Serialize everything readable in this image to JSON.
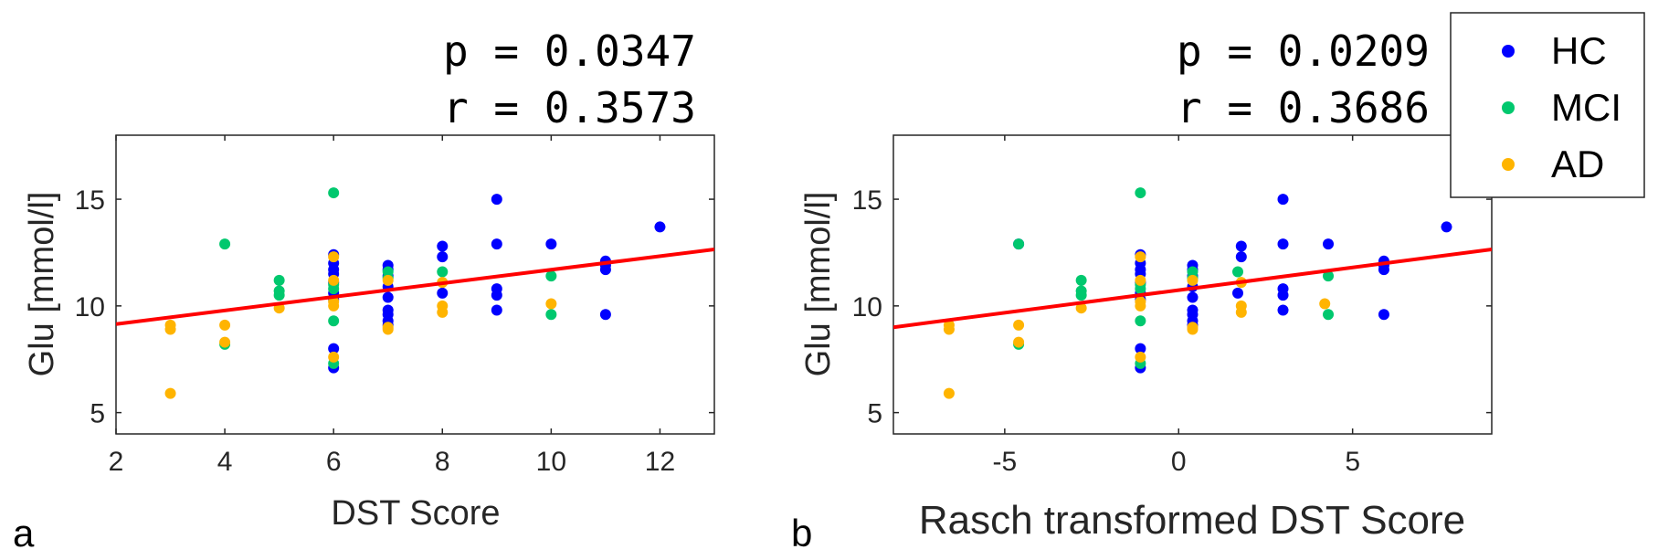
{
  "colors": {
    "HC": "#0000ff",
    "MCI": "#00c86e",
    "AD": "#ffb400",
    "fit": "#ff0000"
  },
  "legend": {
    "position": "top-right",
    "entries": [
      {
        "key": "HC",
        "label": "HC"
      },
      {
        "key": "MCI",
        "label": "MCI"
      },
      {
        "key": "AD",
        "label": "AD"
      }
    ]
  },
  "chart_data": [
    {
      "type": "scatter",
      "panel_label": "a",
      "stats": {
        "p": "p = 0.0347",
        "r": "r = 0.3573"
      },
      "xlabel": "DST Score",
      "ylabel": "Glu [mmol/l]",
      "xlim": [
        2,
        13
      ],
      "ylim": [
        4,
        18
      ],
      "xticks": [
        2,
        4,
        6,
        8,
        10,
        12
      ],
      "yticks": [
        5,
        10,
        15
      ],
      "fit": {
        "x": [
          2,
          13
        ],
        "y": [
          9.15,
          12.65
        ]
      },
      "series": [
        {
          "name": "HC",
          "points": [
            [
              6,
              12.4
            ],
            [
              6,
              12.0
            ],
            [
              6,
              11.7
            ],
            [
              6,
              11.5
            ],
            [
              6,
              11.1
            ],
            [
              6,
              10.6
            ],
            [
              6,
              10.3
            ],
            [
              6,
              8.0
            ],
            [
              6,
              7.1
            ],
            [
              7,
              11.9
            ],
            [
              7,
              11.7
            ],
            [
              7,
              11.4
            ],
            [
              7,
              10.9
            ],
            [
              7,
              10.4
            ],
            [
              7,
              9.8
            ],
            [
              7,
              9.6
            ],
            [
              7,
              9.3
            ],
            [
              7,
              9.1
            ],
            [
              8,
              12.8
            ],
            [
              8,
              12.3
            ],
            [
              8,
              10.6
            ],
            [
              9,
              15.0
            ],
            [
              9,
              12.9
            ],
            [
              9,
              10.8
            ],
            [
              9,
              10.5
            ],
            [
              9,
              9.8
            ],
            [
              10,
              12.9
            ],
            [
              11,
              12.1
            ],
            [
              11,
              11.9
            ],
            [
              11,
              11.7
            ],
            [
              11,
              9.6
            ],
            [
              12,
              13.7
            ]
          ]
        },
        {
          "name": "MCI",
          "points": [
            [
              4,
              12.9
            ],
            [
              4,
              8.2
            ],
            [
              5,
              11.2
            ],
            [
              5,
              10.7
            ],
            [
              5,
              10.5
            ],
            [
              6,
              15.3
            ],
            [
              6,
              11.0
            ],
            [
              6,
              10.8
            ],
            [
              6,
              9.3
            ],
            [
              6,
              7.3
            ],
            [
              7,
              11.6
            ],
            [
              7,
              11.3
            ],
            [
              8,
              11.6
            ],
            [
              10,
              11.4
            ],
            [
              10,
              9.6
            ]
          ]
        },
        {
          "name": "AD",
          "points": [
            [
              3,
              9.1
            ],
            [
              3,
              8.9
            ],
            [
              3,
              5.9
            ],
            [
              4,
              9.1
            ],
            [
              4,
              8.3
            ],
            [
              5,
              9.9
            ],
            [
              6,
              12.3
            ],
            [
              6,
              11.2
            ],
            [
              6,
              10.2
            ],
            [
              6,
              10.0
            ],
            [
              6,
              7.6
            ],
            [
              7,
              11.2
            ],
            [
              7,
              9.0
            ],
            [
              7,
              8.9
            ],
            [
              8,
              11.1
            ],
            [
              8,
              10.0
            ],
            [
              8,
              9.7
            ],
            [
              10,
              10.1
            ]
          ]
        }
      ]
    },
    {
      "type": "scatter",
      "panel_label": "b",
      "stats": {
        "p": "p = 0.0209",
        "r": "r = 0.3686"
      },
      "xlabel": "Rasch transformed DST Score",
      "ylabel": "Glu [mmol/l]",
      "xlim": [
        -8.2,
        9
      ],
      "ylim": [
        4,
        18
      ],
      "xticks": [
        -5,
        0,
        5
      ],
      "yticks": [
        5,
        10,
        15
      ],
      "fit": {
        "x": [
          -8.2,
          9
        ],
        "y": [
          9.0,
          12.65
        ]
      },
      "series": [
        {
          "name": "HC",
          "points": [
            [
              -4.6,
              12.9
            ],
            [
              -1.1,
              12.4
            ],
            [
              -1.1,
              12.0
            ],
            [
              -1.1,
              11.7
            ],
            [
              -1.1,
              11.5
            ],
            [
              -1.1,
              11.1
            ],
            [
              -1.1,
              10.6
            ],
            [
              -1.1,
              10.3
            ],
            [
              -1.1,
              8.0
            ],
            [
              -1.1,
              7.1
            ],
            [
              0.4,
              11.9
            ],
            [
              0.4,
              11.7
            ],
            [
              0.4,
              11.4
            ],
            [
              0.4,
              10.9
            ],
            [
              0.4,
              10.4
            ],
            [
              0.4,
              9.8
            ],
            [
              0.4,
              9.6
            ],
            [
              0.4,
              9.3
            ],
            [
              0.4,
              9.1
            ],
            [
              1.8,
              12.8
            ],
            [
              1.8,
              12.3
            ],
            [
              1.7,
              10.6
            ],
            [
              3.0,
              15.0
            ],
            [
              3.0,
              12.9
            ],
            [
              3.0,
              10.8
            ],
            [
              3.0,
              10.5
            ],
            [
              3.0,
              9.8
            ],
            [
              4.3,
              12.9
            ],
            [
              5.9,
              12.1
            ],
            [
              5.9,
              11.9
            ],
            [
              5.9,
              11.7
            ],
            [
              5.9,
              9.6
            ],
            [
              7.7,
              13.7
            ]
          ]
        },
        {
          "name": "MCI",
          "points": [
            [
              -4.6,
              12.9
            ],
            [
              -4.6,
              8.2
            ],
            [
              -2.8,
              11.2
            ],
            [
              -2.8,
              10.7
            ],
            [
              -2.8,
              10.5
            ],
            [
              -1.1,
              15.3
            ],
            [
              -1.1,
              11.0
            ],
            [
              -1.1,
              10.8
            ],
            [
              -1.1,
              9.3
            ],
            [
              -1.1,
              7.3
            ],
            [
              0.4,
              11.6
            ],
            [
              0.4,
              11.3
            ],
            [
              1.7,
              11.6
            ],
            [
              4.3,
              11.4
            ],
            [
              4.3,
              9.6
            ]
          ]
        },
        {
          "name": "AD",
          "points": [
            [
              -6.6,
              9.1
            ],
            [
              -6.6,
              8.9
            ],
            [
              -6.6,
              5.9
            ],
            [
              -4.6,
              9.1
            ],
            [
              -4.6,
              8.3
            ],
            [
              -2.8,
              9.9
            ],
            [
              -1.1,
              12.3
            ],
            [
              -1.1,
              11.2
            ],
            [
              -1.1,
              10.2
            ],
            [
              -1.1,
              10.0
            ],
            [
              -1.1,
              7.6
            ],
            [
              0.4,
              11.2
            ],
            [
              0.4,
              9.0
            ],
            [
              0.4,
              8.9
            ],
            [
              1.8,
              11.1
            ],
            [
              1.8,
              10.0
            ],
            [
              1.8,
              9.7
            ],
            [
              4.2,
              10.1
            ]
          ]
        }
      ]
    }
  ]
}
